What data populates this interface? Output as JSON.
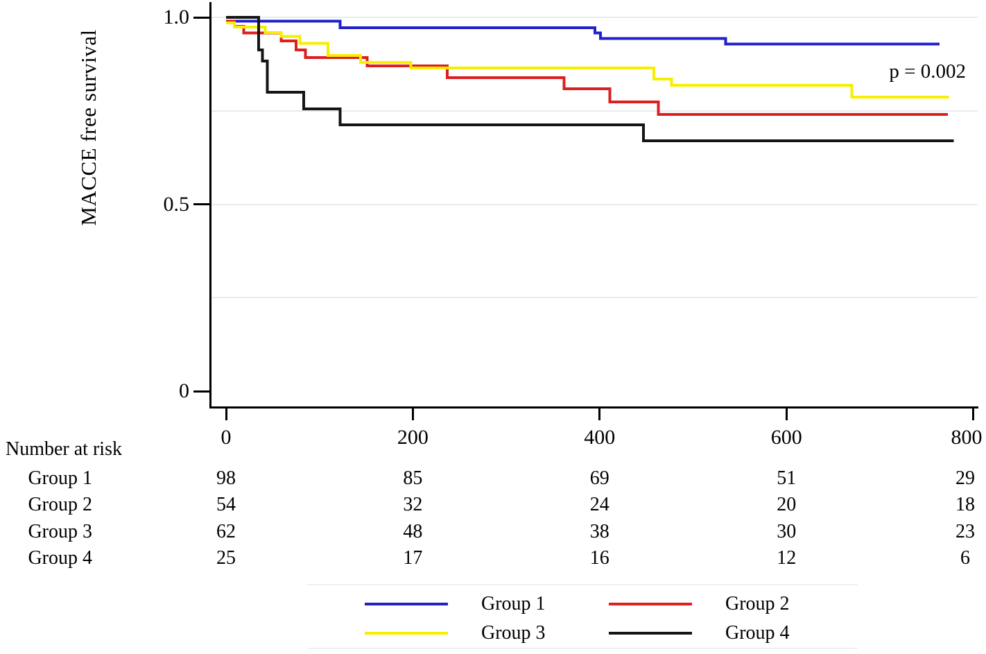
{
  "chart_data": {
    "type": "line",
    "subtype": "kaplan-meier-step",
    "title": "",
    "ylabel": "MACCE free survival",
    "xlabel": "",
    "annotation": "p = 0.002",
    "xlim": [
      0,
      800
    ],
    "ylim": [
      0,
      1.0
    ],
    "grid_on": true,
    "grid_values": [
      1.0,
      0.75,
      0.5,
      0.25
    ],
    "x_ticks": [
      {
        "label": "0",
        "value": 0
      },
      {
        "label": "200",
        "value": 200
      },
      {
        "label": "400",
        "value": 400
      },
      {
        "label": "600",
        "value": 600
      },
      {
        "label": "800",
        "value": 800
      }
    ],
    "y_ticks": [
      {
        "label": "1.0",
        "value": 1.0
      },
      {
        "label": "0.5",
        "value": 0.5
      },
      {
        "label": "0",
        "value": 0
      }
    ],
    "series": [
      {
        "name": "Group 1",
        "color": "#2121c7",
        "start_value": 0.99,
        "steps": [
          [
            122,
            0.972
          ],
          [
            395,
            0.958
          ],
          [
            401,
            0.943
          ],
          [
            535,
            0.929
          ]
        ],
        "end_time": 764
      },
      {
        "name": "Group 2",
        "color": "#dc1f1f",
        "start_value": 0.99,
        "steps": [
          [
            9,
            0.976
          ],
          [
            19,
            0.958
          ],
          [
            59,
            0.937
          ],
          [
            75,
            0.913
          ],
          [
            85,
            0.892
          ],
          [
            151,
            0.87
          ],
          [
            237,
            0.839
          ],
          [
            362,
            0.809
          ],
          [
            411,
            0.774
          ],
          [
            463,
            0.74
          ]
        ],
        "end_time": 773
      },
      {
        "name": "Group 3",
        "color": "#f8ee00",
        "start_value": 0.985,
        "steps": [
          [
            9,
            0.974
          ],
          [
            42,
            0.959
          ],
          [
            59,
            0.949
          ],
          [
            79,
            0.93
          ],
          [
            109,
            0.898
          ],
          [
            144,
            0.879
          ],
          [
            198,
            0.865
          ],
          [
            458,
            0.835
          ],
          [
            477,
            0.818
          ],
          [
            670,
            0.787
          ]
        ],
        "end_time": 774
      },
      {
        "name": "Group 4",
        "color": "#151515",
        "start_value": 1.0,
        "steps": [
          [
            35,
            0.913
          ],
          [
            39,
            0.883
          ],
          [
            44,
            0.8
          ],
          [
            83,
            0.755
          ],
          [
            122,
            0.712
          ],
          [
            447,
            0.67
          ]
        ],
        "end_time": 779
      }
    ]
  },
  "risk_table": {
    "title": "Number at risk",
    "times": [
      0,
      200,
      400,
      600,
      800
    ],
    "rows": [
      {
        "label": "Group 1",
        "counts": [
          98,
          85,
          69,
          51,
          29
        ]
      },
      {
        "label": "Group 2",
        "counts": [
          54,
          32,
          24,
          20,
          18
        ]
      },
      {
        "label": "Group 3",
        "counts": [
          62,
          48,
          38,
          30,
          23
        ]
      },
      {
        "label": "Group 4",
        "counts": [
          25,
          17,
          16,
          12,
          6
        ]
      }
    ]
  },
  "legend": {
    "items": [
      {
        "label": "Group 1",
        "color": "#2121c7"
      },
      {
        "label": "Group 2",
        "color": "#dc1f1f"
      },
      {
        "label": "Group 3",
        "color": "#f8ee00"
      },
      {
        "label": "Group 4",
        "color": "#151515"
      }
    ]
  }
}
